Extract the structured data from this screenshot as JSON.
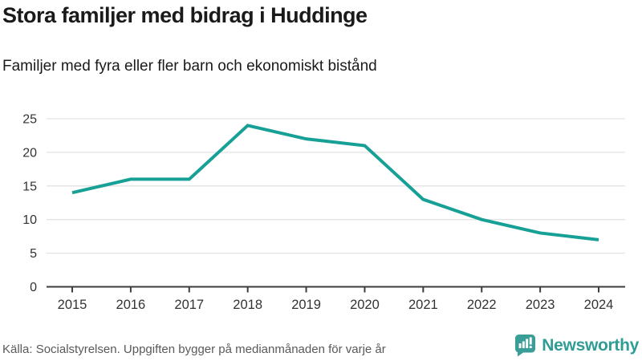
{
  "header": {
    "title": "Stora familjer med bidrag i Huddinge",
    "subtitle": "Familjer med fyra eller fler barn och ekonomiskt bistånd"
  },
  "footer": {
    "source": "Källa: Socialstyrelsen. Uppgiften bygger på medianmånaden för varje år",
    "brand": "Newsworthy"
  },
  "colors": {
    "line": "#17a095",
    "grid": "#e3e3e3",
    "axis": "#3c3c3c",
    "tick_label": "#333333",
    "brand": "#2f9c95",
    "brand_icon": "#3a9e98"
  },
  "chart_data": {
    "type": "line",
    "x": [
      2015,
      2016,
      2017,
      2018,
      2019,
      2020,
      2021,
      2022,
      2023,
      2024
    ],
    "series": [
      {
        "name": "Familjer med fyra eller fler barn och ekonomiskt bistånd",
        "values": [
          14,
          16,
          16,
          24,
          22,
          21,
          13,
          10,
          8,
          7
        ]
      }
    ],
    "title": "Stora familjer med bidrag i Huddinge",
    "xlabel": "",
    "ylabel": "",
    "ylim": [
      0,
      25
    ],
    "yticks": [
      0,
      5,
      10,
      15,
      20,
      25
    ],
    "grid": true,
    "legend": false
  }
}
